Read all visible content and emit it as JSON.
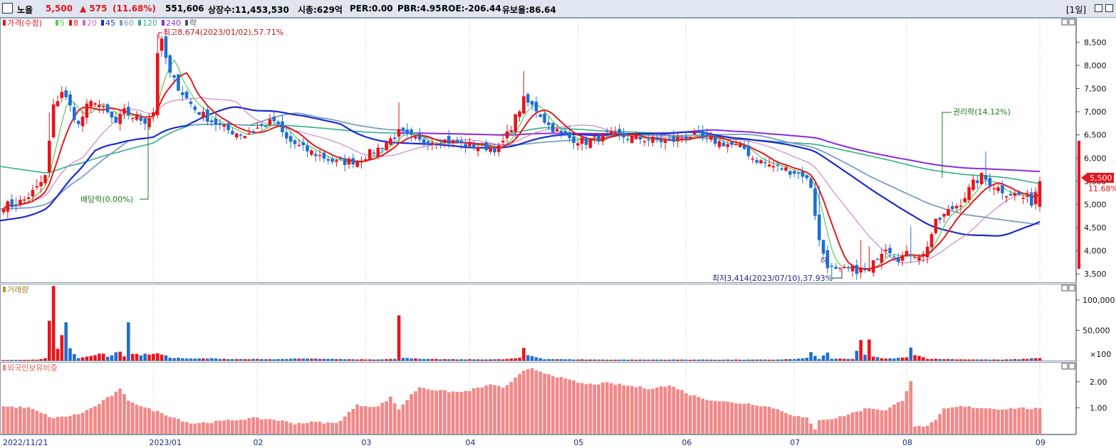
{
  "header": {
    "name": "노을",
    "price": "5,500",
    "change": "▲ 575",
    "change_pct": "(11.68%)",
    "volume": "551,606",
    "listed": "상장수:11,453,530",
    "marketcap": "시총:629억",
    "per": "PER:0.00",
    "pbr": "PBR:4.95",
    "roe": "ROE:-206.44",
    "float": "유보율:86.64",
    "period": "[1일]"
  },
  "colors": {
    "up": "#e8141c",
    "down": "#1f6fd1",
    "ma5": "#5ac85a",
    "ma8": "#e41a1a",
    "ma20": "#c86ec8",
    "ma45": "#1a2bd0",
    "ma60": "#7a9ec4",
    "ma120": "#2fb08a",
    "ma240": "#8a2be2",
    "foreign": "#f08a8a"
  },
  "legend": {
    "price": "가격(수정)",
    "items": [
      {
        "label": "5",
        "color": "#5ac85a"
      },
      {
        "label": "8",
        "color": "#e41a1a"
      },
      {
        "label": "20",
        "color": "#c86ec8"
      },
      {
        "label": "45",
        "color": "#1a2bd0"
      },
      {
        "label": "60",
        "color": "#7a9ec4"
      },
      {
        "label": "120",
        "color": "#2fb08a"
      },
      {
        "label": "240",
        "color": "#8a2be2"
      },
      {
        "label": "락",
        "color": "#555555"
      }
    ],
    "volume": "거래량",
    "foreign": "외국인보유비중"
  },
  "annotations": {
    "high": "최고8,674(2023/01/02),57.71%",
    "low": "최저3,414(2023/07/10),37.93%",
    "dividend": "배당락(0.00%)",
    "rights": "권리락(14.12%)",
    "ha": "하"
  },
  "current_tag": {
    "price": "5,500",
    "pct": "11.68%"
  },
  "chart_data": {
    "type": "candlestick",
    "x_labels": [
      "2022/11/21",
      "2023/01",
      "02",
      "03",
      "04",
      "05",
      "06",
      "07",
      "08",
      "09"
    ],
    "price_axis": {
      "ticks": [
        "3,500",
        "4,000",
        "4,500",
        "5,000",
        "5,500",
        "6,000",
        "6,500",
        "7,000",
        "7,500",
        "8,000",
        "8,500"
      ],
      "range": [
        3350,
        8950
      ]
    },
    "volume_axis": {
      "ticks": [
        "100,000",
        "50,000"
      ],
      "unit": "×100",
      "range": [
        0,
        120000
      ]
    },
    "foreign_axis": {
      "ticks": [
        "2.00",
        "1.00"
      ],
      "range": [
        0,
        2.6
      ]
    },
    "high": 8674,
    "low": 3414,
    "last_close": 5500,
    "price_path": [
      [
        0,
        5000
      ],
      [
        2,
        4980
      ],
      [
        5,
        5100
      ],
      [
        8,
        5350
      ],
      [
        10,
        5600
      ],
      [
        12,
        7100
      ],
      [
        14,
        7450
      ],
      [
        16,
        7100
      ],
      [
        18,
        6700
      ],
      [
        20,
        7100
      ],
      [
        22,
        7250
      ],
      [
        24,
        7050
      ],
      [
        27,
        6750
      ],
      [
        29,
        7000
      ],
      [
        31,
        6900
      ],
      [
        34,
        6800
      ],
      [
        36,
        7000
      ],
      [
        37,
        8300
      ],
      [
        38,
        8500
      ],
      [
        40,
        7800
      ],
      [
        43,
        7400
      ],
      [
        46,
        7050
      ],
      [
        50,
        6800
      ],
      [
        54,
        6600
      ],
      [
        58,
        6500
      ],
      [
        61,
        6650
      ],
      [
        65,
        6800
      ],
      [
        68,
        6400
      ],
      [
        72,
        6200
      ],
      [
        76,
        6050
      ],
      [
        80,
        5900
      ],
      [
        85,
        5950
      ],
      [
        90,
        6200
      ],
      [
        95,
        6550
      ],
      [
        100,
        6350
      ],
      [
        105,
        6400
      ],
      [
        110,
        6300
      ],
      [
        115,
        6250
      ],
      [
        119,
        6200
      ],
      [
        121,
        6500
      ],
      [
        125,
        7250
      ],
      [
        128,
        7050
      ],
      [
        131,
        6700
      ],
      [
        135,
        6450
      ],
      [
        140,
        6350
      ],
      [
        145,
        6500
      ],
      [
        150,
        6450
      ],
      [
        155,
        6400
      ],
      [
        160,
        6350
      ],
      [
        165,
        6500
      ],
      [
        169,
        6400
      ],
      [
        174,
        6300
      ],
      [
        178,
        6200
      ],
      [
        180,
        6000
      ],
      [
        184,
        5850
      ],
      [
        188,
        5750
      ],
      [
        192,
        5650
      ],
      [
        194,
        5400
      ],
      [
        196,
        4200
      ],
      [
        198,
        3700
      ],
      [
        200,
        3550
      ],
      [
        204,
        3600
      ],
      [
        208,
        3550
      ],
      [
        210,
        3900
      ],
      [
        212,
        4100
      ],
      [
        215,
        3850
      ],
      [
        218,
        3950
      ],
      [
        221,
        3900
      ],
      [
        224,
        4600
      ],
      [
        227,
        4850
      ],
      [
        230,
        5050
      ],
      [
        233,
        5450
      ],
      [
        235,
        5600
      ],
      [
        238,
        5400
      ],
      [
        241,
        5250
      ],
      [
        244,
        5200
      ],
      [
        247,
        5050
      ],
      [
        249,
        5500
      ]
    ],
    "volume_path": [
      [
        0,
        800
      ],
      [
        8,
        1500
      ],
      [
        10,
        3500
      ],
      [
        11,
        62000
      ],
      [
        12,
        115000
      ],
      [
        13,
        22000
      ],
      [
        14,
        40000
      ],
      [
        15,
        58000
      ],
      [
        16,
        24000
      ],
      [
        17,
        10000
      ],
      [
        18,
        4000
      ],
      [
        20,
        7500
      ],
      [
        22,
        9000
      ],
      [
        24,
        11000
      ],
      [
        25,
        6000
      ],
      [
        27,
        14000
      ],
      [
        28,
        16000
      ],
      [
        29,
        6000
      ],
      [
        30,
        72000
      ],
      [
        31,
        12000
      ],
      [
        33,
        9000
      ],
      [
        36,
        12000
      ],
      [
        38,
        10000
      ],
      [
        40,
        5000
      ],
      [
        45,
        3000
      ],
      [
        50,
        3500
      ],
      [
        55,
        2500
      ],
      [
        60,
        2500
      ],
      [
        65,
        2000
      ],
      [
        70,
        3000
      ],
      [
        75,
        3000
      ],
      [
        80,
        2500
      ],
      [
        85,
        2000
      ],
      [
        90,
        2000
      ],
      [
        94,
        2500
      ],
      [
        95,
        82000
      ],
      [
        96,
        5000
      ],
      [
        100,
        2500
      ],
      [
        110,
        2000
      ],
      [
        120,
        2000
      ],
      [
        124,
        4000
      ],
      [
        125,
        20000
      ],
      [
        126,
        9000
      ],
      [
        130,
        2500
      ],
      [
        135,
        2000
      ],
      [
        145,
        1500
      ],
      [
        155,
        1500
      ],
      [
        165,
        1500
      ],
      [
        175,
        1500
      ],
      [
        185,
        1500
      ],
      [
        190,
        2500
      ],
      [
        193,
        4000
      ],
      [
        194,
        16000
      ],
      [
        195,
        7000
      ],
      [
        196,
        2500
      ],
      [
        198,
        14000
      ],
      [
        199,
        3000
      ],
      [
        204,
        2500
      ],
      [
        206,
        33000
      ],
      [
        207,
        10000
      ],
      [
        208,
        31000
      ],
      [
        209,
        6000
      ],
      [
        212,
        3000
      ],
      [
        217,
        5000
      ],
      [
        218,
        25000
      ],
      [
        219,
        10000
      ],
      [
        222,
        3000
      ],
      [
        230,
        2000
      ],
      [
        240,
        1500
      ],
      [
        245,
        2500
      ],
      [
        249,
        4500
      ]
    ],
    "foreign_path": [
      [
        0,
        1.05
      ],
      [
        6,
        1.0
      ],
      [
        12,
        0.6
      ],
      [
        18,
        0.75
      ],
      [
        22,
        1.05
      ],
      [
        28,
        1.7
      ],
      [
        30,
        1.3
      ],
      [
        34,
        1.0
      ],
      [
        38,
        0.8
      ],
      [
        45,
        0.4
      ],
      [
        50,
        0.45
      ],
      [
        60,
        0.6
      ],
      [
        65,
        0.55
      ],
      [
        70,
        0.4
      ],
      [
        75,
        0.45
      ],
      [
        80,
        0.4
      ],
      [
        85,
        1.1
      ],
      [
        90,
        1.05
      ],
      [
        93,
        1.4
      ],
      [
        95,
        0.95
      ],
      [
        98,
        1.5
      ],
      [
        100,
        1.8
      ],
      [
        105,
        1.65
      ],
      [
        110,
        1.6
      ],
      [
        115,
        1.8
      ],
      [
        118,
        1.9
      ],
      [
        120,
        1.75
      ],
      [
        125,
        2.4
      ],
      [
        127,
        2.5
      ],
      [
        130,
        2.35
      ],
      [
        135,
        2.1
      ],
      [
        140,
        1.9
      ],
      [
        145,
        1.95
      ],
      [
        150,
        1.85
      ],
      [
        155,
        1.75
      ],
      [
        160,
        1.85
      ],
      [
        162,
        1.75
      ],
      [
        165,
        1.5
      ],
      [
        170,
        1.3
      ],
      [
        175,
        1.2
      ],
      [
        180,
        1.15
      ],
      [
        185,
        1.0
      ],
      [
        190,
        0.7
      ],
      [
        193,
        0.6
      ],
      [
        195,
        0.15
      ],
      [
        196,
        0.55
      ],
      [
        200,
        0.6
      ],
      [
        204,
        0.8
      ],
      [
        208,
        1.0
      ],
      [
        212,
        0.9
      ],
      [
        216,
        1.3
      ],
      [
        218,
        2.05
      ],
      [
        219,
        0.3
      ],
      [
        221,
        0.25
      ],
      [
        224,
        0.5
      ],
      [
        226,
        0.95
      ],
      [
        230,
        1.05
      ],
      [
        235,
        1.0
      ],
      [
        240,
        0.95
      ],
      [
        244,
        1.0
      ],
      [
        249,
        0.95
      ]
    ]
  }
}
